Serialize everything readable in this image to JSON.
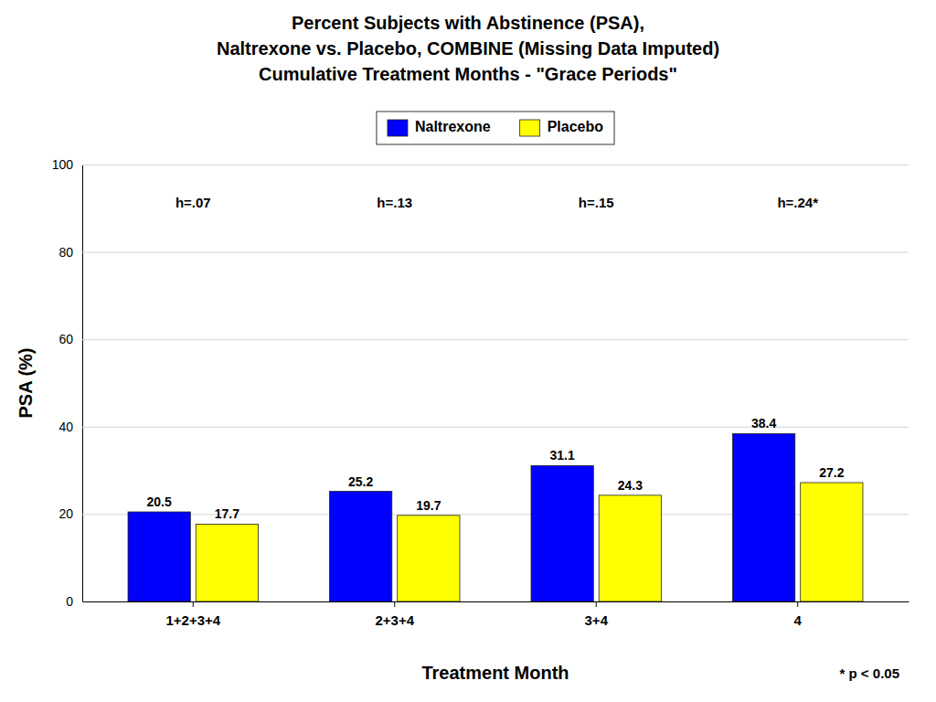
{
  "chart_data": {
    "type": "bar",
    "title": [
      "Percent Subjects with Abstinence (PSA),",
      "Naltrexone vs. Placebo, COMBINE (Missing Data Imputed)",
      "Cumulative Treatment Months - \"Grace Periods\""
    ],
    "categories": [
      "1+2+3+4",
      "2+3+4",
      "3+4",
      "4"
    ],
    "series": [
      {
        "name": "Naltrexone",
        "color": "#0000FF",
        "values": [
          20.5,
          25.2,
          31.1,
          38.4
        ]
      },
      {
        "name": "Placebo",
        "color": "#FFFF00",
        "values": [
          17.7,
          19.7,
          24.3,
          27.2
        ]
      }
    ],
    "xlabel": "Treatment Month",
    "ylabel": "PSA (%)",
    "ylim": [
      0,
      100
    ],
    "yticks": [
      0,
      20,
      40,
      60,
      80,
      100
    ],
    "grid": true,
    "legend": "top",
    "data_labels": true,
    "annotations": [
      {
        "text": "h=.07",
        "category": "1+2+3+4"
      },
      {
        "text": "h=.13",
        "category": "2+3+4"
      },
      {
        "text": "h=.15",
        "category": "3+4"
      },
      {
        "text": "h=.24*",
        "category": "4"
      },
      {
        "text": "* p < 0.05"
      }
    ]
  }
}
